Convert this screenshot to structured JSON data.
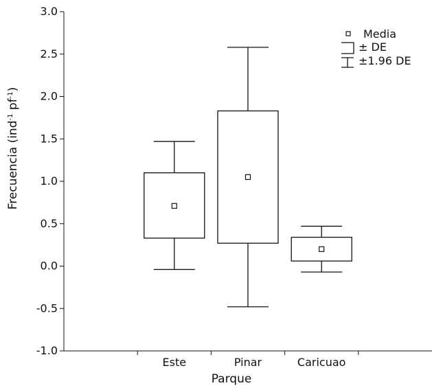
{
  "chart_data": {
    "type": "box",
    "xlabel": "Parque",
    "ylabel_main": "Frecuencia (ind",
    "ylabel_sup1": "-1",
    "ylabel_mid": " pf",
    "ylabel_sup2": "-1",
    "ylabel_end": ")",
    "ylim": [
      -1.0,
      3.0
    ],
    "yticks": [
      "-1.0",
      "-0.5",
      "0.0",
      "0.5",
      "1.0",
      "1.5",
      "2.0",
      "2.5",
      "3.0"
    ],
    "categories": [
      "Este",
      "Pinar",
      "Caricuao"
    ],
    "groups": [
      {
        "name": "Este",
        "mean": 0.71,
        "sd_low": 0.33,
        "sd_high": 1.1,
        "ci_low": -0.04,
        "ci_high": 1.47
      },
      {
        "name": "Pinar",
        "mean": 1.05,
        "sd_low": 0.27,
        "sd_high": 1.83,
        "ci_low": -0.48,
        "ci_high": 2.58
      },
      {
        "name": "Caricuao",
        "mean": 0.2,
        "sd_low": 0.06,
        "sd_high": 0.34,
        "ci_low": -0.07,
        "ci_high": 0.47
      }
    ],
    "legend": {
      "position": "top-right",
      "items": [
        {
          "symbol": "mean",
          "label": "Media"
        },
        {
          "symbol": "sd",
          "label": "± DE"
        },
        {
          "symbol": "ci",
          "label": "±1.96 DE"
        }
      ]
    },
    "grid": false
  }
}
